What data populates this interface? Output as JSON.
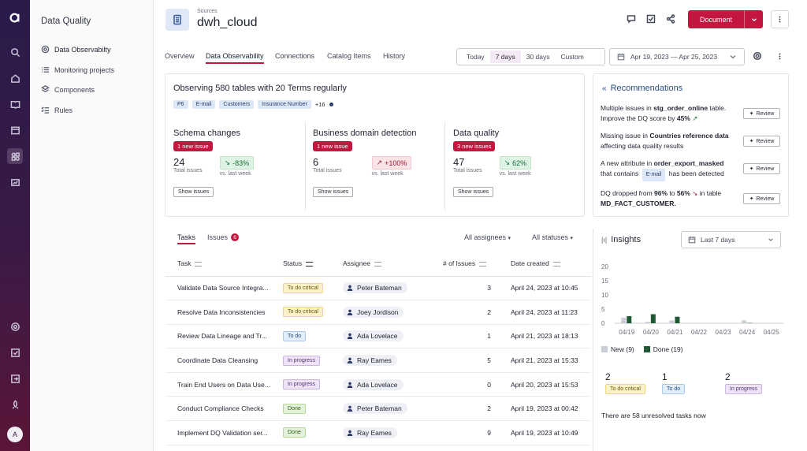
{
  "colors": {
    "brand": "#c3173f",
    "rail": "#2a1b4a",
    "new_bar": "#c9ced6",
    "done_bar": "#1f5a35"
  },
  "app": {
    "logo_icon": "app-logo-icon"
  },
  "secondary_nav": {
    "title": "Data Quality",
    "items": [
      {
        "label": "Data Observabilty",
        "icon": "observability-icon"
      },
      {
        "label": "Monitoring projects",
        "icon": "list-icon"
      },
      {
        "label": "Components",
        "icon": "components-icon"
      },
      {
        "label": "Rules",
        "icon": "rules-icon"
      }
    ]
  },
  "header": {
    "breadcrumb": "Sources",
    "title": "dwh_cloud",
    "document_label": "Document"
  },
  "tabs": [
    "Overview",
    "Data Observability",
    "Connections",
    "Catalog Items",
    "History"
  ],
  "range": {
    "options": [
      "Today",
      "7 days",
      "30 days",
      "Custom"
    ],
    "selected": "7 days"
  },
  "date_range": "Apr 19, 2023 — Apr 25, 2023",
  "observing": {
    "title": "Observing 580 tables with 20 Terms regularly",
    "tags": [
      "P6",
      "E-mail",
      "Customers",
      "Insurance Number"
    ],
    "more": "+16"
  },
  "metrics": [
    {
      "title": "Schema changes",
      "badge": "1 new issue",
      "count": "24",
      "count_label": "Total issues",
      "delta": "-83%",
      "delta_label": "vs. last week",
      "trend": "good",
      "button": "Show issues"
    },
    {
      "title": "Business domain detection",
      "badge": "1 new issue",
      "count": "6",
      "count_label": "Total issues",
      "delta": "+100%",
      "delta_label": "vs. last week",
      "trend": "bad",
      "button": "Show issues"
    },
    {
      "title": "Data quality",
      "badge": "3 new issues",
      "count": "47",
      "count_label": "Total issues",
      "delta": "62%",
      "delta_label": "vs. last week",
      "trend": "good",
      "button": "Show issues"
    }
  ],
  "recommendations": {
    "title": "Recommendations",
    "review_label": "Review",
    "items": [
      {
        "pre": "Multiple issues in ",
        "bold": "stg_order_online",
        "post": " table. Improve the DQ score by ",
        "bold2": "45%",
        "post2": ""
      },
      {
        "pre": "Missing issue in ",
        "bold": "Countries reference data",
        "post": " affecting data quality results",
        "bold2": "",
        "post2": ""
      },
      {
        "pre": "A new attribute in ",
        "bold": "order_export_masked",
        "post": " that contains ",
        "chip": "E-mail",
        "post2": " has been detected"
      },
      {
        "pre": "DQ dropped from ",
        "bold": "96%",
        "post": " to ",
        "bold2": "56%",
        "post2": " in table ",
        "bold3": "MD_FACT_CUSTOMER."
      }
    ]
  },
  "tasks": {
    "tab_tasks": "Tasks",
    "tab_issues": "Issues",
    "issues_count": "6",
    "filter_assignees": "All assignees",
    "filter_statuses": "All statuses",
    "columns": [
      "Task",
      "Status",
      "Assignee",
      "# of Issues",
      "Date created"
    ],
    "rows": [
      {
        "task": "Validate Data Source Integra...",
        "status": "To do critical",
        "kind": "crit",
        "assignee": "Peter Bateman",
        "issues": "3",
        "date": "April 24, 2023 at 10:45"
      },
      {
        "task": "Resolve Data Inconsistencies",
        "status": "To do critical",
        "kind": "crit",
        "assignee": "Joey Jordison",
        "issues": "2",
        "date": "April 24, 2023 at 11:23"
      },
      {
        "task": "Review Data Lineage and Tr...",
        "status": "To do",
        "kind": "todo",
        "assignee": "Ada Lovelace",
        "issues": "1",
        "date": "April 21, 2023 at 18:13"
      },
      {
        "task": "Coordinate Data Cleansing",
        "status": "In progress",
        "kind": "prog",
        "assignee": "Ray Eames",
        "issues": "5",
        "date": "April 21, 2023 at 15:33"
      },
      {
        "task": "Train End Users on Data Use...",
        "status": "In progress",
        "kind": "prog",
        "assignee": "Ada Lovelace",
        "issues": "0",
        "date": "April 20, 2023 at 15:53"
      },
      {
        "task": "Conduct Compliance Checks",
        "status": "Done",
        "kind": "done",
        "assignee": "Peter Bateman",
        "issues": "2",
        "date": "April 19, 2023 at 00:42"
      },
      {
        "task": "Implement DQ Validation ser...",
        "status": "Done",
        "kind": "done",
        "assignee": "Ray Eames",
        "issues": "9",
        "date": "April 19, 2023 at 10:49"
      }
    ]
  },
  "insights": {
    "title": "Insights",
    "period": "Last 7 days",
    "summary": [
      {
        "count": "2",
        "label": "To do critical",
        "kind": "crit"
      },
      {
        "count": "1",
        "label": "To do",
        "kind": "todo"
      },
      {
        "count": "2",
        "label": "In progress",
        "kind": "prog"
      }
    ],
    "footer": "There are 58 unresolved tasks now"
  },
  "chart_data": {
    "type": "bar",
    "categories": [
      "04/19",
      "04/20",
      "04/21",
      "04/22",
      "04/23",
      "04/24",
      "04/25"
    ],
    "series": [
      {
        "name": "New",
        "legend": "New (9)",
        "values": [
          2,
          0.5,
          1,
          0,
          0,
          1,
          0
        ]
      },
      {
        "name": "Done",
        "legend": "Done (19)",
        "values": [
          2.5,
          3.2,
          2.3,
          0,
          0,
          0.1,
          0
        ]
      }
    ],
    "y_ticks": [
      "0",
      "5",
      "10",
      "15",
      "20"
    ],
    "ylim": [
      0,
      20
    ]
  }
}
